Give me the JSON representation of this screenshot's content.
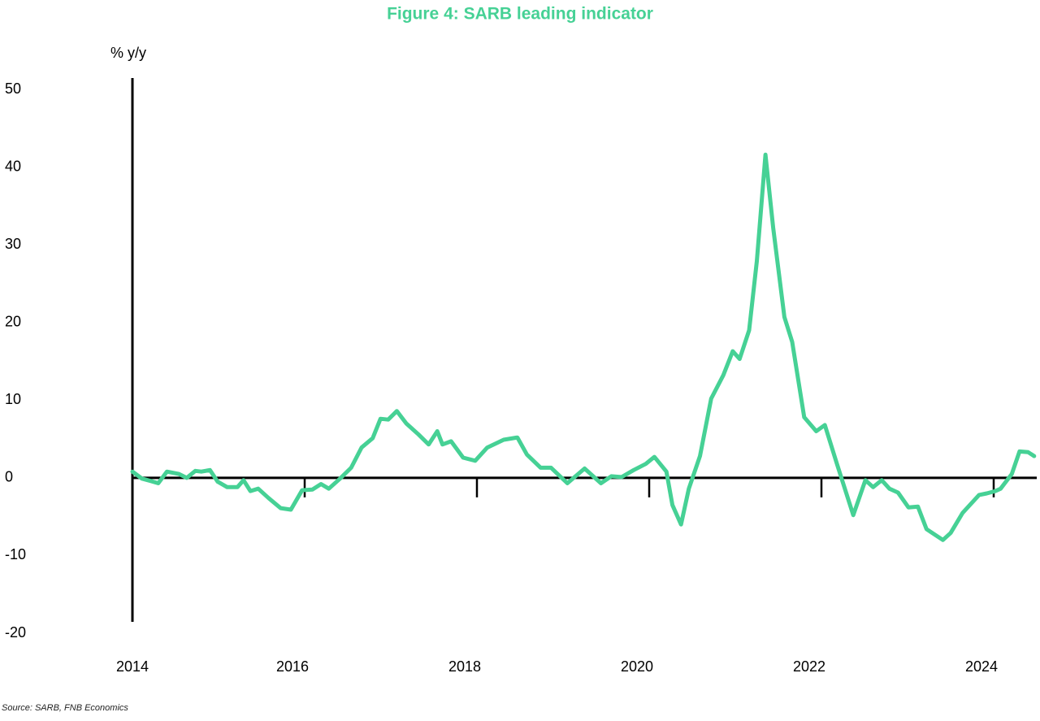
{
  "chart_data": {
    "type": "line",
    "title": "Figure 4: SARB leading indicator",
    "y_label": "% y/y",
    "source": "Source: SARB, FNB Economics",
    "xlim": [
      2014,
      2024.5
    ],
    "xticks": [
      2014,
      2016,
      2018,
      2020,
      2022,
      2024
    ],
    "ylim": [
      -20,
      50
    ],
    "yticks": [
      -20,
      -10,
      0,
      10,
      20,
      30,
      40,
      50
    ],
    "series": [
      {
        "name": "SARB leading indicator",
        "color": "#46d195",
        "x": [
          2014.0,
          2014.11,
          2014.21,
          2014.3,
          2014.4,
          2014.54,
          2014.63,
          2014.73,
          2014.8,
          2014.9,
          2014.99,
          2015.1,
          2015.22,
          2015.29,
          2015.37,
          2015.46,
          2015.58,
          2015.72,
          2015.84,
          2015.97,
          2016.09,
          2016.19,
          2016.28,
          2016.41,
          2016.54,
          2016.66,
          2016.79,
          2016.88,
          2016.97,
          2017.07,
          2017.18,
          2017.32,
          2017.44,
          2017.54,
          2017.6,
          2017.7,
          2017.84,
          2017.98,
          2018.12,
          2018.31,
          2018.47,
          2018.58,
          2018.74,
          2018.86,
          2019.05,
          2019.25,
          2019.44,
          2019.56,
          2019.68,
          2019.82,
          2019.96,
          2020.06,
          2020.2,
          2020.27,
          2020.37,
          2020.46,
          2020.59,
          2020.72,
          2020.86,
          2020.97,
          2021.05,
          2021.16,
          2021.25,
          2021.35,
          2021.44,
          2021.57,
          2021.66,
          2021.8,
          2021.94,
          2022.04,
          2022.18,
          2022.37,
          2022.51,
          2022.6,
          2022.7,
          2022.79,
          2022.89,
          2023.01,
          2023.12,
          2023.22,
          2023.41,
          2023.5,
          2023.64,
          2023.83,
          2023.92,
          2024.02,
          2024.08,
          2024.21,
          2024.3,
          2024.4,
          2024.47
        ],
        "values": [
          0.8,
          -0.1,
          -0.4,
          -0.7,
          0.8,
          0.5,
          0.0,
          0.9,
          0.8,
          1.0,
          -0.5,
          -1.2,
          -1.2,
          -0.3,
          -1.7,
          -1.4,
          -2.6,
          -3.9,
          -4.1,
          -1.6,
          -1.5,
          -0.8,
          -1.4,
          -0.1,
          1.3,
          3.9,
          5.1,
          7.6,
          7.5,
          8.6,
          7.0,
          5.6,
          4.3,
          6.0,
          4.3,
          4.7,
          2.6,
          2.2,
          3.9,
          4.9,
          5.2,
          3.0,
          1.3,
          1.3,
          -0.7,
          1.2,
          -0.7,
          0.2,
          0.1,
          1.0,
          1.8,
          2.7,
          0.8,
          -3.5,
          -6.0,
          -1.4,
          2.8,
          10.2,
          13.2,
          16.3,
          15.3,
          19.0,
          27.9,
          41.6,
          32.2,
          20.7,
          17.5,
          7.8,
          6.0,
          6.8,
          1.8,
          -4.8,
          -0.3,
          -1.2,
          -0.3,
          -1.4,
          -1.9,
          -3.8,
          -3.7,
          -6.6,
          -8.0,
          -7.1,
          -4.5,
          -2.2,
          -2.0,
          -1.7,
          -1.4,
          0.5,
          3.4,
          3.3,
          2.8
        ]
      }
    ]
  }
}
